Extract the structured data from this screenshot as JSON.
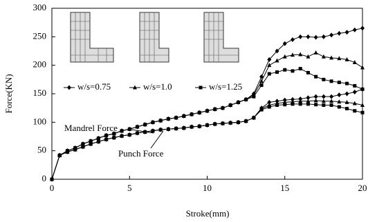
{
  "chart_data": {
    "type": "line",
    "xlabel": "Stroke(mm)",
    "ylabel": "Force(KN)",
    "annotations": [
      "Mandrel Force",
      "Punch Force"
    ],
    "x": [
      0,
      0.5,
      1,
      1.5,
      2,
      2.5,
      3,
      3.5,
      4,
      4.5,
      5,
      5.5,
      6,
      6.5,
      7,
      7.5,
      8,
      8.5,
      9,
      9.5,
      10,
      10.5,
      11,
      11.5,
      12,
      12.5,
      13,
      13.5,
      14,
      14.5,
      15,
      15.5,
      16,
      16.5,
      17,
      17.5,
      18,
      18.5,
      19,
      19.5,
      20
    ],
    "series": [
      {
        "name": "w/s=0.75",
        "marker": "diamond",
        "color": "#000000",
        "values": [
          0,
          42,
          50,
          55,
          62,
          67,
          72,
          77,
          80,
          85,
          88,
          92,
          96,
          100,
          103,
          106,
          108,
          111,
          114,
          117,
          120,
          123,
          125,
          130,
          135,
          140,
          150,
          180,
          210,
          225,
          238,
          245,
          250,
          250,
          249,
          250,
          253,
          256,
          258,
          262,
          265
        ],
        "punch_values": [
          0,
          42,
          48,
          52,
          57,
          62,
          66,
          70,
          73,
          76,
          78,
          81,
          83,
          85,
          87,
          88,
          89,
          90,
          92,
          93,
          95,
          97,
          98,
          99,
          100,
          102,
          108,
          125,
          135,
          137,
          139,
          140,
          141,
          143,
          145,
          145,
          145,
          148,
          150,
          153,
          158
        ]
      },
      {
        "name": "w/s=1.0",
        "marker": "triangle",
        "color": "#000000",
        "values": [
          0,
          42,
          50,
          55,
          62,
          67,
          72,
          77,
          80,
          85,
          88,
          92,
          96,
          100,
          103,
          106,
          108,
          111,
          114,
          117,
          120,
          123,
          125,
          130,
          135,
          140,
          148,
          172,
          200,
          208,
          215,
          218,
          219,
          215,
          222,
          215,
          213,
          212,
          210,
          205,
          196
        ],
        "punch_values": [
          0,
          42,
          48,
          52,
          57,
          62,
          66,
          70,
          73,
          76,
          78,
          81,
          83,
          85,
          87,
          88,
          89,
          90,
          92,
          93,
          95,
          97,
          98,
          99,
          100,
          102,
          108,
          124,
          130,
          133,
          135,
          136,
          137,
          137,
          138,
          137,
          137,
          136,
          135,
          133,
          130
        ]
      },
      {
        "name": "w/s=1.25",
        "marker": "square",
        "color": "#000000",
        "values": [
          0,
          42,
          50,
          55,
          62,
          67,
          72,
          77,
          80,
          85,
          88,
          92,
          96,
          100,
          103,
          106,
          108,
          111,
          114,
          117,
          120,
          123,
          125,
          130,
          135,
          140,
          145,
          165,
          185,
          188,
          192,
          190,
          194,
          187,
          180,
          175,
          172,
          170,
          168,
          164,
          158
        ],
        "punch_values": [
          0,
          42,
          48,
          52,
          57,
          62,
          66,
          70,
          73,
          76,
          78,
          81,
          83,
          85,
          87,
          88,
          89,
          90,
          92,
          93,
          95,
          97,
          98,
          99,
          100,
          102,
          108,
          122,
          127,
          130,
          131,
          132,
          132,
          132,
          131,
          130,
          130,
          127,
          124,
          120,
          117
        ]
      }
    ],
    "xlim": [
      0,
      20
    ],
    "xticks": [
      0,
      5,
      10,
      15,
      20
    ],
    "ylim": [
      0,
      300
    ],
    "yticks": [
      0,
      50,
      100,
      150,
      200,
      250,
      300
    ],
    "grid": false
  }
}
